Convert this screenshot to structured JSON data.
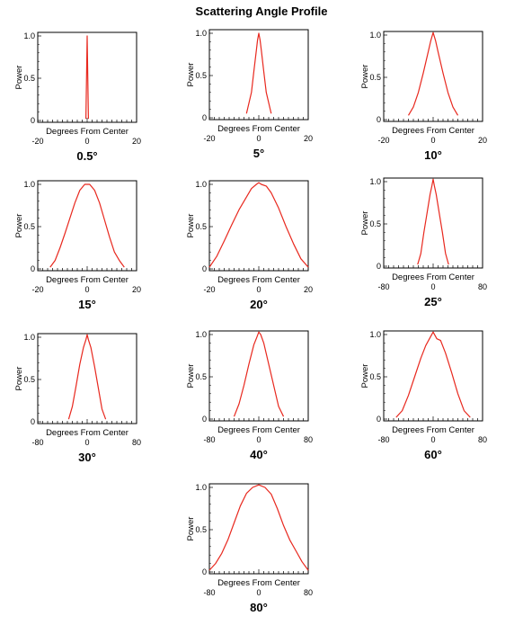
{
  "title": "Scattering Angle Profile",
  "chart_data": [
    {
      "type": "line",
      "caption": "0.5°",
      "xlabel": "Degrees From Center",
      "ylabel": "Power",
      "xlim": [
        -20,
        20
      ],
      "xticks": [
        "-20",
        "0",
        "20"
      ],
      "yticks": [
        "0",
        "0.5",
        "1.0"
      ],
      "color": "#e8281e",
      "x": [
        -0.5,
        -0.25,
        0,
        0.25,
        0.5
      ],
      "y": [
        0.02,
        0.5,
        1.0,
        0.5,
        0.02
      ]
    },
    {
      "type": "line",
      "caption": "5°",
      "xlabel": "Degrees From Center",
      "ylabel": "Power",
      "xlim": [
        -20,
        20
      ],
      "xticks": [
        "-20",
        "0",
        "20"
      ],
      "yticks": [
        "0",
        "0.5",
        "1.0"
      ],
      "color": "#e8281e",
      "x": [
        -5,
        -3,
        -2,
        -1,
        -0.5,
        0,
        0.5,
        1,
        2,
        3,
        5
      ],
      "y": [
        0.05,
        0.3,
        0.55,
        0.8,
        0.92,
        1.0,
        0.92,
        0.8,
        0.55,
        0.3,
        0.05
      ]
    },
    {
      "type": "line",
      "caption": "10°",
      "xlabel": "Degrees From Center",
      "ylabel": "Power",
      "xlim": [
        -20,
        20
      ],
      "xticks": [
        "-20",
        "0",
        "20"
      ],
      "yticks": [
        "0",
        "0.5",
        "1.0"
      ],
      "color": "#e8281e",
      "x": [
        -10,
        -8,
        -6,
        -4,
        -2,
        -1,
        0,
        1,
        2,
        4,
        6,
        8,
        10
      ],
      "y": [
        0.05,
        0.15,
        0.32,
        0.55,
        0.8,
        0.93,
        1.03,
        0.93,
        0.8,
        0.55,
        0.32,
        0.15,
        0.05
      ]
    },
    {
      "type": "line",
      "caption": "15°",
      "xlabel": "Degrees From Center",
      "ylabel": "Power",
      "xlim": [
        -20,
        20
      ],
      "xticks": [
        "-20",
        "0",
        "20"
      ],
      "yticks": [
        "0",
        "0.5",
        "1.0"
      ],
      "color": "#e8281e",
      "x": [
        -15,
        -13,
        -11,
        -9,
        -7,
        -5,
        -3,
        -1,
        0,
        1,
        3,
        5,
        7,
        9,
        11,
        13,
        15
      ],
      "y": [
        0.02,
        0.1,
        0.25,
        0.42,
        0.6,
        0.78,
        0.93,
        1.0,
        1.0,
        1.0,
        0.93,
        0.78,
        0.58,
        0.38,
        0.2,
        0.1,
        0.02
      ]
    },
    {
      "type": "line",
      "caption": "20°",
      "xlabel": "Degrees From Center",
      "ylabel": "Power",
      "xlim": [
        -20,
        20
      ],
      "xticks": [
        "-20",
        "0",
        "20"
      ],
      "yticks": [
        "0",
        "0.5",
        "1.0"
      ],
      "color": "#e8281e",
      "x": [
        -20,
        -17,
        -14,
        -11,
        -8,
        -5,
        -3,
        -1,
        0,
        1,
        3,
        5,
        8,
        11,
        14,
        17,
        20
      ],
      "y": [
        0.02,
        0.15,
        0.33,
        0.52,
        0.7,
        0.85,
        0.95,
        1.0,
        1.02,
        1.0,
        0.98,
        0.9,
        0.72,
        0.5,
        0.3,
        0.12,
        0.02
      ]
    },
    {
      "type": "line",
      "caption": "25°",
      "xlabel": "Degrees From Center",
      "ylabel": "Power",
      "xlim": [
        -80,
        80
      ],
      "xticks": [
        "-80",
        "0",
        "80"
      ],
      "yticks": [
        "0",
        "0.5",
        "1.0"
      ],
      "color": "#e8281e",
      "x": [
        -25,
        -20,
        -15,
        -10,
        -5,
        -2,
        0,
        2,
        5,
        10,
        15,
        20,
        25
      ],
      "y": [
        0.02,
        0.15,
        0.4,
        0.62,
        0.85,
        0.95,
        1.03,
        0.95,
        0.85,
        0.62,
        0.4,
        0.15,
        0.02
      ]
    },
    {
      "type": "line",
      "caption": "30°",
      "xlabel": "Degrees From Center",
      "ylabel": "Power",
      "xlim": [
        -80,
        80
      ],
      "xticks": [
        "-80",
        "0",
        "80"
      ],
      "yticks": [
        "0",
        "0.5",
        "1.0"
      ],
      "color": "#e8281e",
      "x": [
        -30,
        -24,
        -18,
        -12,
        -6,
        -2,
        0,
        2,
        6,
        12,
        18,
        24,
        30
      ],
      "y": [
        0.03,
        0.18,
        0.42,
        0.68,
        0.88,
        0.97,
        1.03,
        0.97,
        0.88,
        0.65,
        0.4,
        0.15,
        0.03
      ]
    },
    {
      "type": "line",
      "caption": "40°",
      "xlabel": "Degrees From Center",
      "ylabel": "Power",
      "xlim": [
        -80,
        80
      ],
      "xticks": [
        "-80",
        "0",
        "80"
      ],
      "yticks": [
        "0",
        "0.5",
        "1.0"
      ],
      "color": "#e8281e",
      "x": [
        -40,
        -32,
        -24,
        -16,
        -8,
        -3,
        0,
        3,
        8,
        16,
        24,
        32,
        40
      ],
      "y": [
        0.03,
        0.18,
        0.4,
        0.65,
        0.88,
        0.97,
        1.03,
        1.0,
        0.9,
        0.65,
        0.4,
        0.15,
        0.03
      ]
    },
    {
      "type": "line",
      "caption": "60°",
      "xlabel": "Degrees From Center",
      "ylabel": "Power",
      "xlim": [
        -80,
        80
      ],
      "xticks": [
        "-80",
        "0",
        "80"
      ],
      "yticks": [
        "0",
        "0.5",
        "1.0"
      ],
      "color": "#e8281e",
      "x": [
        -60,
        -50,
        -40,
        -30,
        -20,
        -12,
        -6,
        0,
        6,
        12,
        20,
        30,
        40,
        50,
        60
      ],
      "y": [
        0.02,
        0.1,
        0.28,
        0.5,
        0.72,
        0.87,
        0.95,
        1.03,
        0.95,
        0.93,
        0.78,
        0.55,
        0.3,
        0.1,
        0.02
      ]
    },
    {
      "type": "line",
      "caption": "80°",
      "xlabel": "Degrees From Center",
      "ylabel": "Power",
      "xlim": [
        -80,
        80
      ],
      "xticks": [
        "-80",
        "0",
        "80"
      ],
      "yticks": [
        "0",
        "0.5",
        "1.0"
      ],
      "color": "#e8281e",
      "x": [
        -80,
        -70,
        -60,
        -50,
        -40,
        -30,
        -20,
        -10,
        0,
        10,
        20,
        30,
        40,
        50,
        60,
        70,
        80
      ],
      "y": [
        0.02,
        0.1,
        0.22,
        0.38,
        0.58,
        0.78,
        0.93,
        1.0,
        1.03,
        1.0,
        0.92,
        0.75,
        0.55,
        0.38,
        0.25,
        0.12,
        0.02
      ]
    }
  ]
}
